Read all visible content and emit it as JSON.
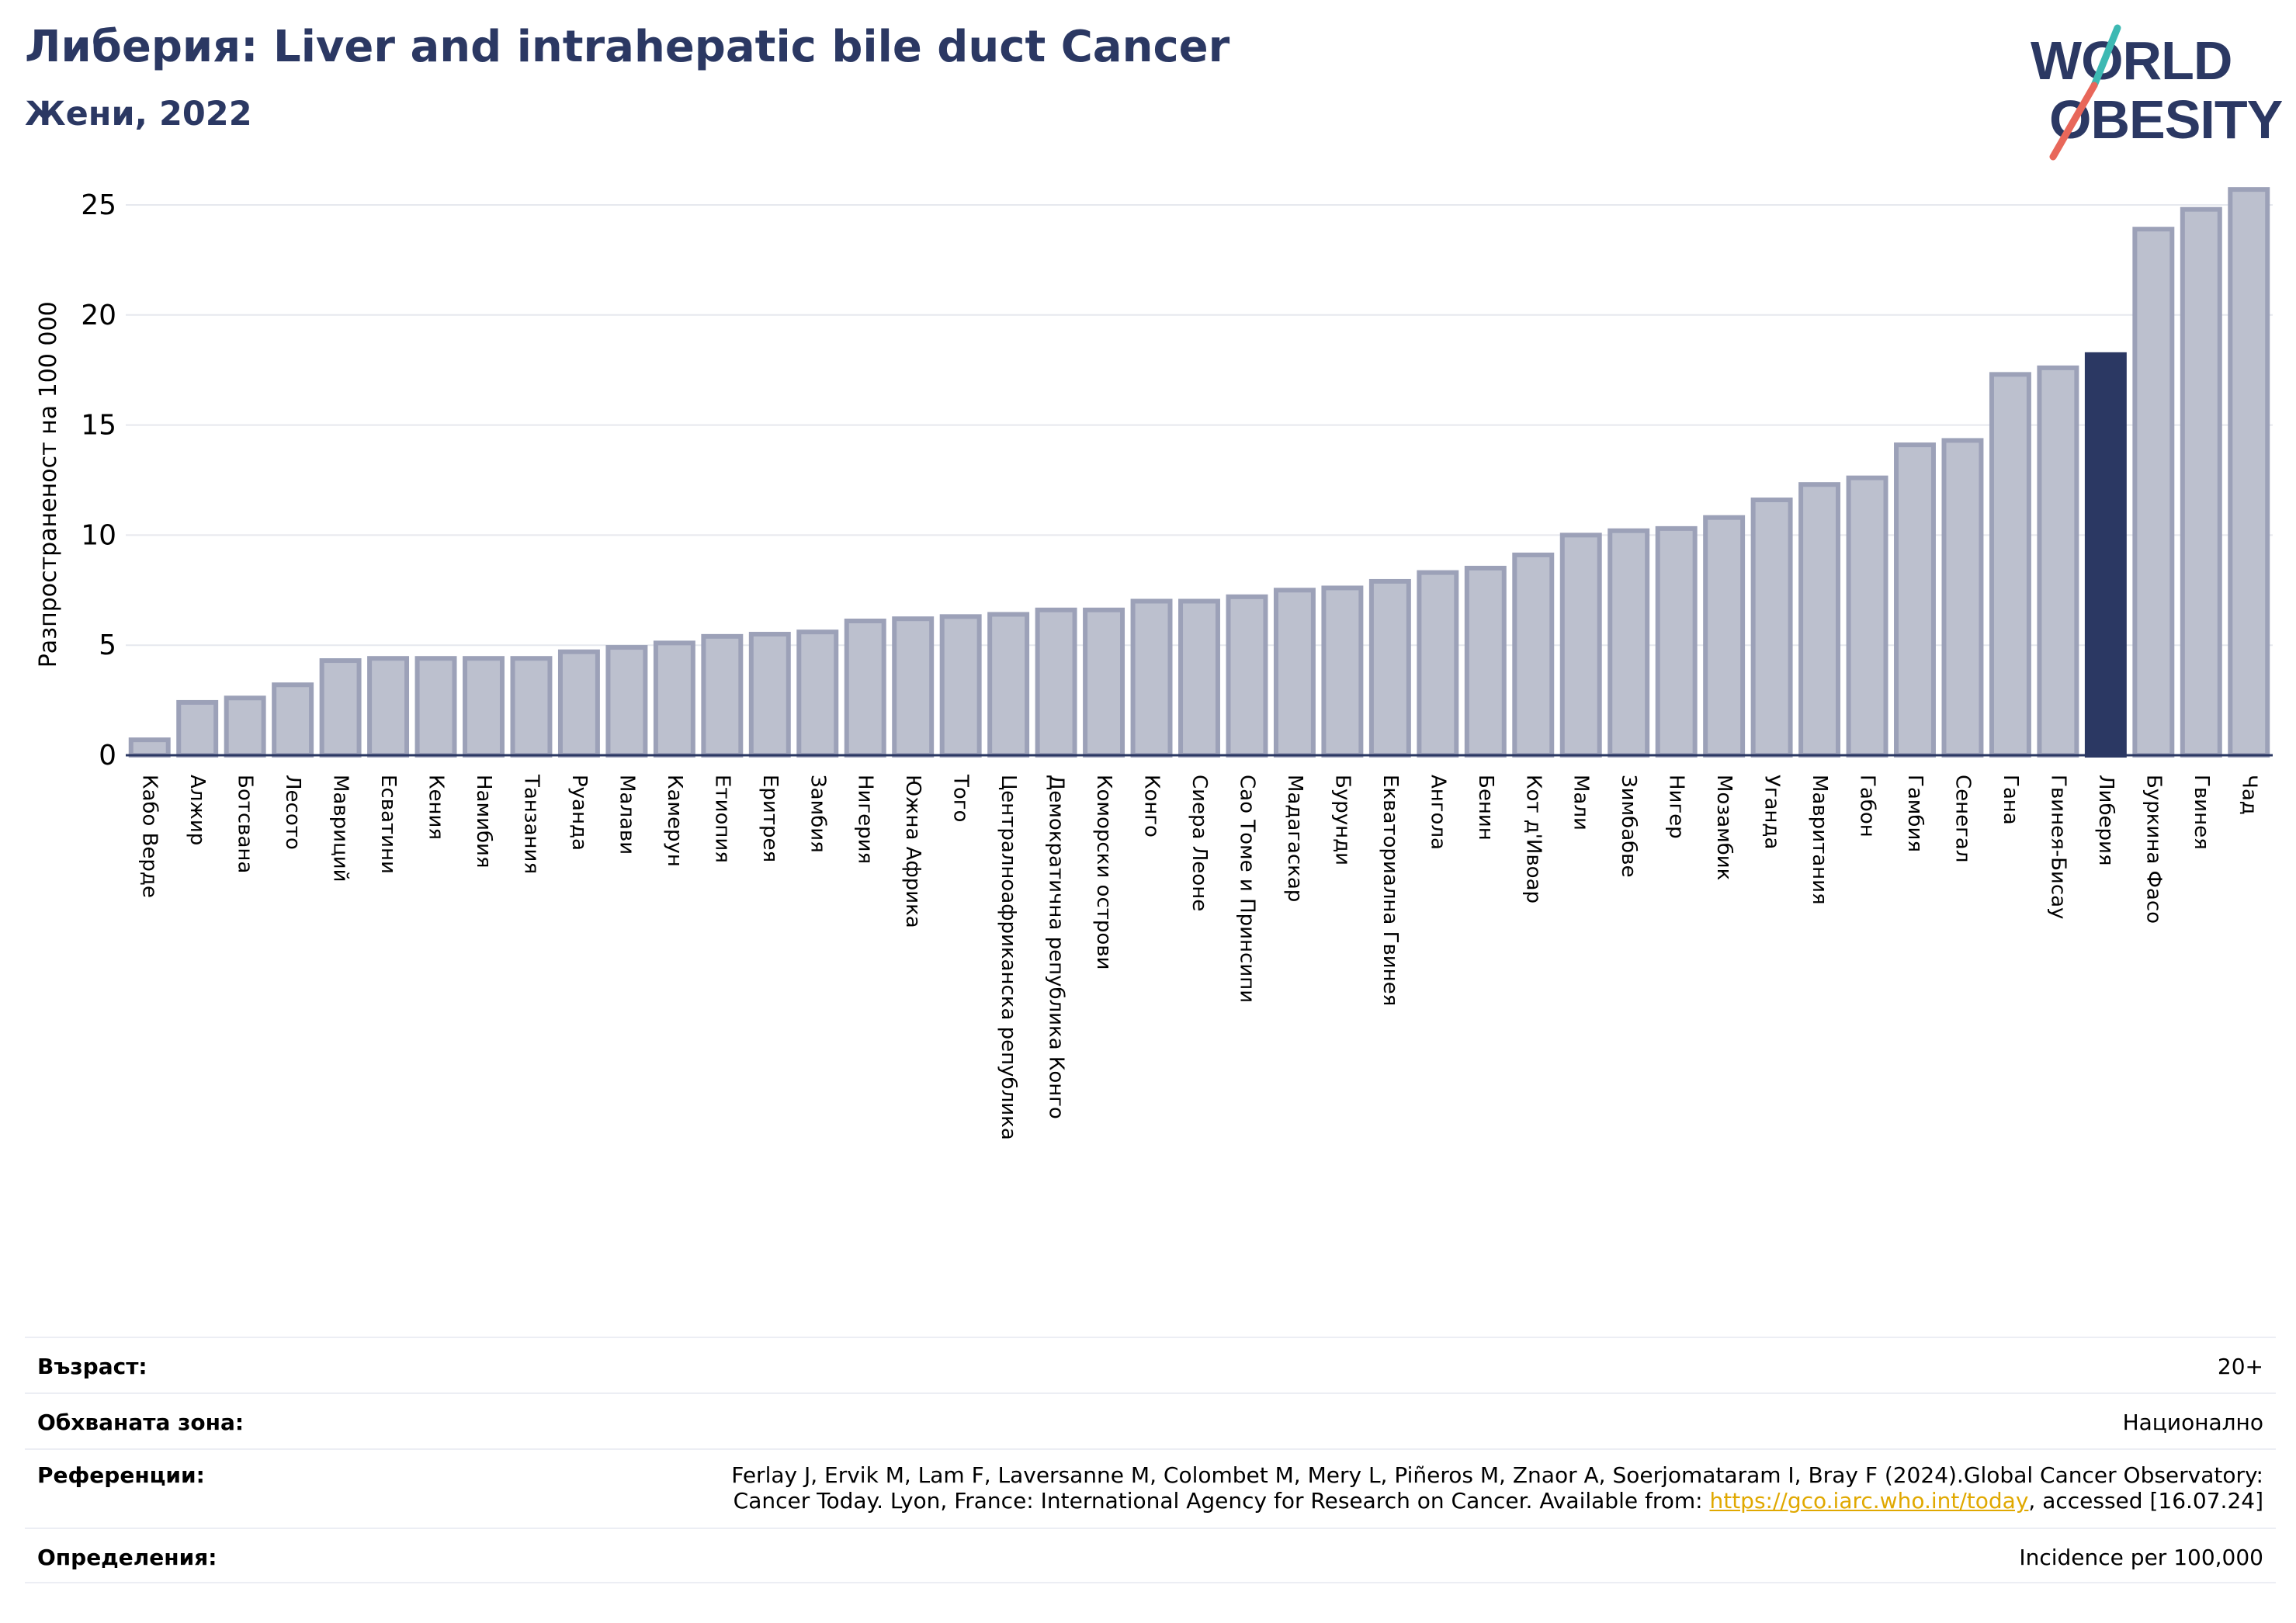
{
  "header": {
    "title": "Либерия: Liver and intrahepatic bile duct Cancer",
    "subtitle": "Жени, 2022"
  },
  "logo": {
    "line1": "WORLD",
    "line2": "OBESITY",
    "text_color": "#2b3863",
    "slash_colors": [
      "#3db9b3",
      "#e8675a"
    ]
  },
  "colors": {
    "bar": "#bcc0ce",
    "bar_border": "#9ca1b8",
    "highlight": "#2b3863",
    "grid": "#e6e8ee",
    "axis": "#2b3863"
  },
  "chart_data": {
    "type": "bar",
    "ylabel": "Разпространеност  на 100 000",
    "ylim": [
      0,
      26
    ],
    "yticks": [
      0,
      5,
      10,
      15,
      20,
      25
    ],
    "grid": true,
    "highlight": "Либерия",
    "categories": [
      "Кабо Верде",
      "Алжир",
      "Ботсвана",
      "Лесото",
      "Мавриций",
      "Есватини",
      "Кения",
      "Намибия",
      "Танзания",
      "Руанда",
      "Малави",
      "Камерун",
      "Етиопия",
      "Еритрея",
      "Замбия",
      "Нигерия",
      "Южна Африка",
      "Того",
      "Централноафриканска република",
      "Демократична република Конго",
      "Коморски острови",
      "Конго",
      "Сиера Леоне",
      "Сао Томе и Принсипи",
      "Мадагаскар",
      "Бурунди",
      "Екваториална Гвинея",
      "Ангола",
      "Бенин",
      "Кот д'Ивоар",
      "Мали",
      "Зимбабве",
      "Нигер",
      "Мозамбик",
      "Уганда",
      "Мавритания",
      "Габон",
      "Гамбия",
      "Сенегал",
      "Гана",
      "Гвинея-Бисау",
      "Либерия",
      "Буркина Фасо",
      "Гвинея",
      "Чад"
    ],
    "values": [
      0.7,
      2.4,
      2.6,
      3.2,
      4.3,
      4.4,
      4.4,
      4.4,
      4.4,
      4.7,
      4.9,
      5.1,
      5.4,
      5.5,
      5.6,
      6.1,
      6.2,
      6.3,
      6.4,
      6.6,
      6.6,
      7.0,
      7.0,
      7.2,
      7.5,
      7.6,
      7.9,
      8.3,
      8.5,
      9.1,
      10.0,
      10.2,
      10.3,
      10.8,
      11.6,
      12.3,
      12.6,
      14.1,
      14.3,
      17.3,
      17.6,
      18.2,
      23.9,
      24.8,
      25.7
    ]
  },
  "meta": {
    "age": {
      "label": "Възраст:",
      "value": "20+"
    },
    "coverage": {
      "label": "Обхваната зона:",
      "value": "Национално"
    },
    "references": {
      "label": "Референции:",
      "line1": "Ferlay J, Ervik M, Lam F, Laversanne M, Colombet M, Mery L, Piñeros M, Znaor A, Soerjomataram I, Bray F (2024).Global Cancer Observatory:",
      "line2_pre": "Cancer Today. Lyon, France: International Agency for Research on Cancer. Available from: ",
      "link": "https://gco.iarc.who.int/today",
      "line2_post": ", accessed [16.07.24]"
    },
    "definitions": {
      "label": "Определения:",
      "value": "Incidence per 100,000"
    }
  }
}
